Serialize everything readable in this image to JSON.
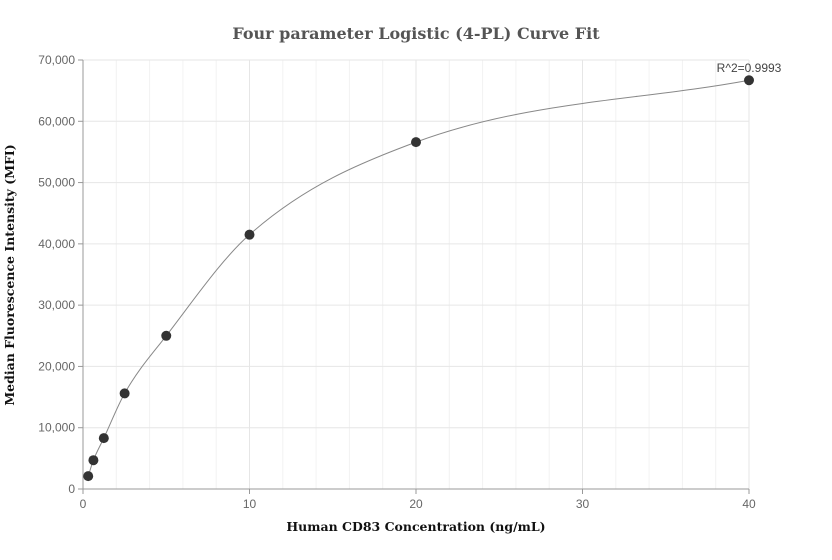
{
  "chart_data": {
    "type": "scatter",
    "title": "Four parameter Logistic (4-PL) Curve Fit",
    "xlabel": "Human CD83 Concentration (ng/mL)",
    "ylabel": "Median Fluorescence Intensity (MFI)",
    "xlim": [
      0,
      40
    ],
    "ylim": [
      0,
      70000
    ],
    "x_ticks": [
      "0",
      "10",
      "20",
      "30",
      "40"
    ],
    "y_ticks": [
      "0",
      "10,000",
      "20,000",
      "30,000",
      "40,000",
      "50,000",
      "60,000",
      "70,000"
    ],
    "grid": true,
    "annotation": "R^2=0.9993",
    "colors": {
      "points": "#333333",
      "curve": "#888888",
      "grid": "#e6e6e6"
    },
    "points": [
      {
        "x": 0.3125,
        "y": 2100
      },
      {
        "x": 0.625,
        "y": 4700
      },
      {
        "x": 1.25,
        "y": 8300
      },
      {
        "x": 2.5,
        "y": 15600
      },
      {
        "x": 5,
        "y": 25000
      },
      {
        "x": 10,
        "y": 41500
      },
      {
        "x": 20,
        "y": 56600
      },
      {
        "x": 40,
        "y": 66700
      }
    ]
  }
}
